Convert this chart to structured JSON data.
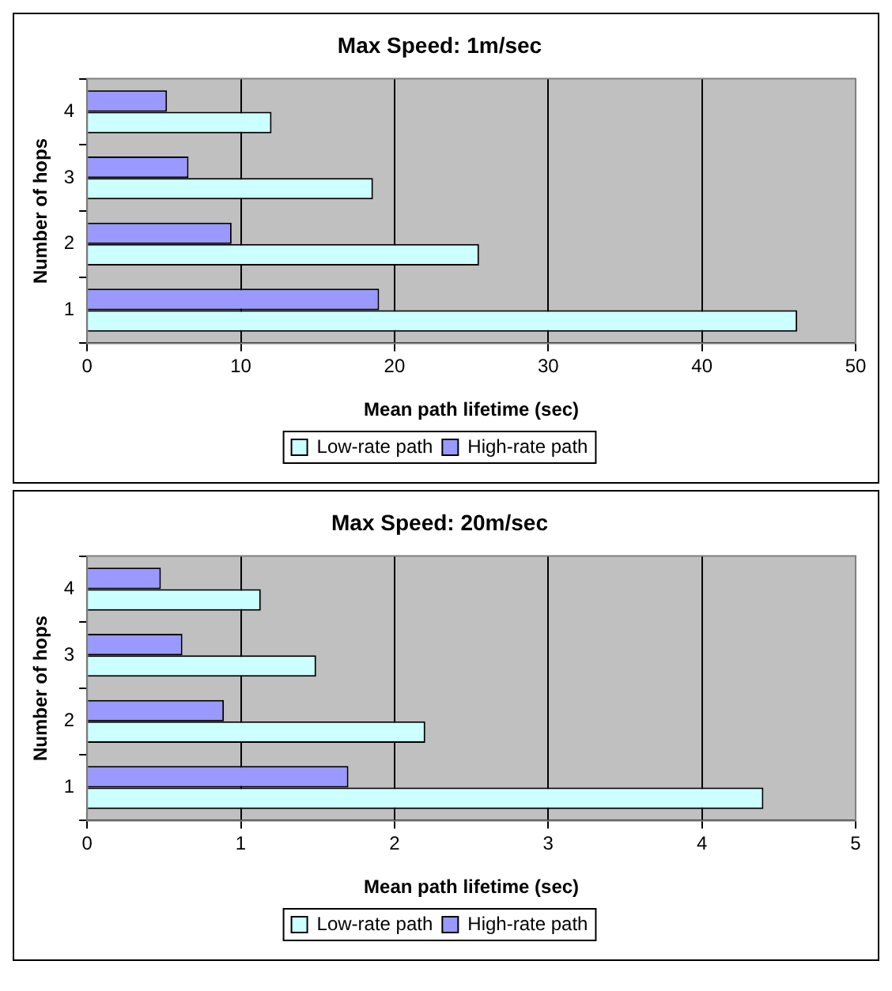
{
  "chart_data": [
    {
      "type": "bar",
      "orientation": "horizontal",
      "title": "Max Speed: 1m/sec",
      "xlabel": "Mean path lifetime (sec)",
      "ylabel": "Number of hops",
      "categories": [
        "4",
        "3",
        "2",
        "1"
      ],
      "series": [
        {
          "name": "High-rate path",
          "color": "#9999ff",
          "values": [
            5.2,
            6.6,
            9.4,
            19.0
          ]
        },
        {
          "name": "Low-rate path",
          "color": "#ccffff",
          "values": [
            12.0,
            18.6,
            25.5,
            46.2
          ]
        }
      ],
      "xlim": [
        0,
        50
      ],
      "xticks": [
        0,
        10,
        20,
        30,
        40,
        50
      ],
      "grid": "x",
      "legend": "bottom"
    },
    {
      "type": "bar",
      "orientation": "horizontal",
      "title": "Max Speed: 20m/sec",
      "xlabel": "Mean path lifetime (sec)",
      "ylabel": "Number of hops",
      "categories": [
        "4",
        "3",
        "2",
        "1"
      ],
      "series": [
        {
          "name": "High-rate path",
          "color": "#9999ff",
          "values": [
            0.48,
            0.62,
            0.89,
            1.7
          ]
        },
        {
          "name": "Low-rate path",
          "color": "#ccffff",
          "values": [
            1.13,
            1.49,
            2.2,
            4.4
          ]
        }
      ],
      "xlim": [
        0,
        5
      ],
      "xticks": [
        0,
        1,
        2,
        3,
        4,
        5
      ],
      "grid": "x",
      "legend": "bottom"
    }
  ]
}
